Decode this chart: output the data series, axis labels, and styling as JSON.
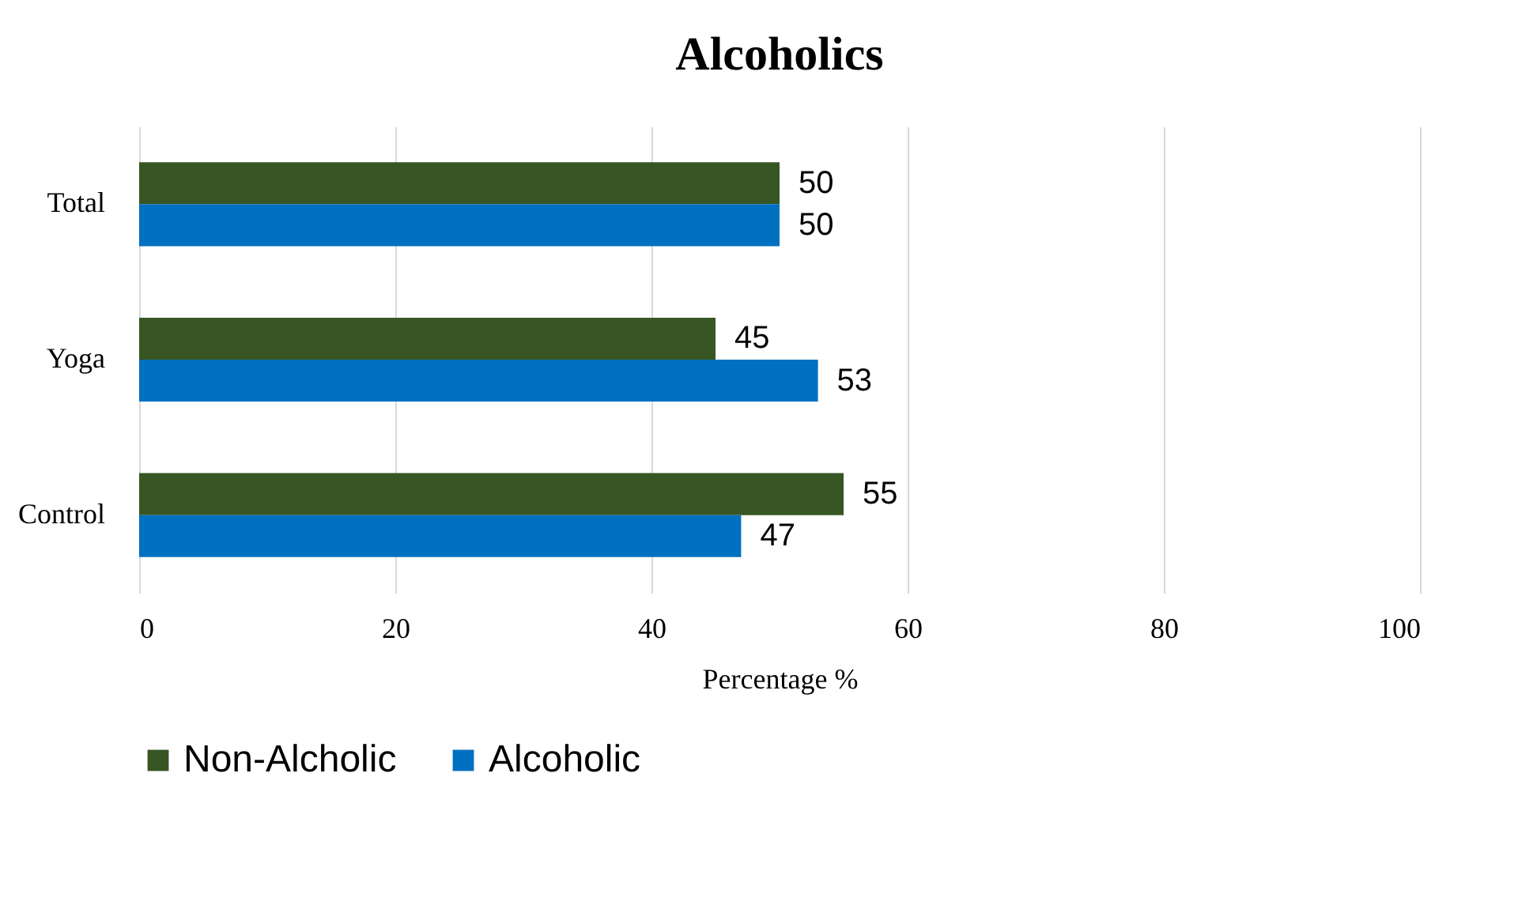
{
  "chart_data": {
    "type": "bar",
    "orientation": "horizontal",
    "title": "Alcoholics",
    "xlabel": "Percentage %",
    "categories": [
      "Total",
      "Yoga",
      "Control"
    ],
    "series": [
      {
        "name": "Non-Alcholic",
        "color": "#375623",
        "values": [
          50,
          45,
          55
        ]
      },
      {
        "name": "Alcoholic",
        "color": "#0070c0",
        "values": [
          50,
          53,
          47
        ]
      }
    ],
    "xlim": [
      0,
      100
    ],
    "xticks": [
      0,
      20,
      40,
      60,
      80,
      100
    ],
    "grid": "x",
    "legend": "bottom",
    "data_labels": true
  }
}
